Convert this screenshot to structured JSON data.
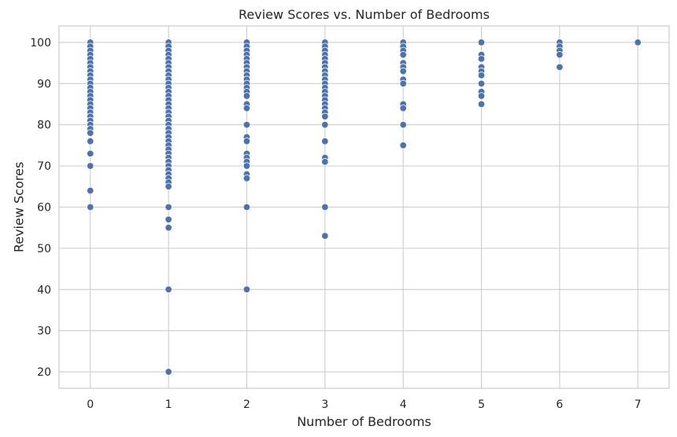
{
  "chart_data": {
    "type": "scatter",
    "title": "Review Scores vs. Number of Bedrooms",
    "xlabel": "Number of Bedrooms",
    "ylabel": "Review Scores",
    "xlim": [
      -0.4,
      7.4
    ],
    "ylim": [
      16,
      104
    ],
    "xticks": [
      0,
      1,
      2,
      3,
      4,
      5,
      6,
      7
    ],
    "yticks": [
      20,
      30,
      40,
      50,
      60,
      70,
      80,
      90,
      100
    ],
    "grid": true,
    "legend": "none",
    "point_color": "#4c72b0",
    "series": [
      {
        "points": [
          [
            0,
            100
          ],
          [
            0,
            99
          ],
          [
            0,
            98
          ],
          [
            0,
            97
          ],
          [
            0,
            96
          ],
          [
            0,
            95
          ],
          [
            0,
            94
          ],
          [
            0,
            93
          ],
          [
            0,
            92
          ],
          [
            0,
            91
          ],
          [
            0,
            90
          ],
          [
            0,
            89
          ],
          [
            0,
            88
          ],
          [
            0,
            87
          ],
          [
            0,
            86
          ],
          [
            0,
            85
          ],
          [
            0,
            84
          ],
          [
            0,
            83
          ],
          [
            0,
            82
          ],
          [
            0,
            81
          ],
          [
            0,
            80
          ],
          [
            0,
            79
          ],
          [
            0,
            78
          ],
          [
            0,
            76
          ],
          [
            0,
            73
          ],
          [
            0,
            70
          ],
          [
            0,
            64
          ],
          [
            0,
            60
          ],
          [
            1,
            100
          ],
          [
            1,
            99
          ],
          [
            1,
            98
          ],
          [
            1,
            97
          ],
          [
            1,
            96
          ],
          [
            1,
            95
          ],
          [
            1,
            94
          ],
          [
            1,
            93
          ],
          [
            1,
            92
          ],
          [
            1,
            91
          ],
          [
            1,
            90
          ],
          [
            1,
            89
          ],
          [
            1,
            88
          ],
          [
            1,
            87
          ],
          [
            1,
            86
          ],
          [
            1,
            85
          ],
          [
            1,
            84
          ],
          [
            1,
            83
          ],
          [
            1,
            82
          ],
          [
            1,
            81
          ],
          [
            1,
            80
          ],
          [
            1,
            79
          ],
          [
            1,
            78
          ],
          [
            1,
            77
          ],
          [
            1,
            76
          ],
          [
            1,
            75
          ],
          [
            1,
            74
          ],
          [
            1,
            73
          ],
          [
            1,
            72
          ],
          [
            1,
            71
          ],
          [
            1,
            70
          ],
          [
            1,
            69
          ],
          [
            1,
            68
          ],
          [
            1,
            67
          ],
          [
            1,
            66
          ],
          [
            1,
            65
          ],
          [
            1,
            60
          ],
          [
            1,
            57
          ],
          [
            1,
            55
          ],
          [
            1,
            40
          ],
          [
            1,
            20
          ],
          [
            2,
            100
          ],
          [
            2,
            99
          ],
          [
            2,
            98
          ],
          [
            2,
            97
          ],
          [
            2,
            96
          ],
          [
            2,
            95
          ],
          [
            2,
            94
          ],
          [
            2,
            93
          ],
          [
            2,
            92
          ],
          [
            2,
            91
          ],
          [
            2,
            90
          ],
          [
            2,
            89
          ],
          [
            2,
            88
          ],
          [
            2,
            87
          ],
          [
            2,
            85
          ],
          [
            2,
            84
          ],
          [
            2,
            80
          ],
          [
            2,
            77
          ],
          [
            2,
            76
          ],
          [
            2,
            73
          ],
          [
            2,
            72
          ],
          [
            2,
            71
          ],
          [
            2,
            70
          ],
          [
            2,
            68
          ],
          [
            2,
            67
          ],
          [
            2,
            60
          ],
          [
            2,
            40
          ],
          [
            3,
            100
          ],
          [
            3,
            99
          ],
          [
            3,
            98
          ],
          [
            3,
            97
          ],
          [
            3,
            96
          ],
          [
            3,
            95
          ],
          [
            3,
            94
          ],
          [
            3,
            93
          ],
          [
            3,
            92
          ],
          [
            3,
            91
          ],
          [
            3,
            90
          ],
          [
            3,
            89
          ],
          [
            3,
            88
          ],
          [
            3,
            87
          ],
          [
            3,
            86
          ],
          [
            3,
            85
          ],
          [
            3,
            84
          ],
          [
            3,
            83
          ],
          [
            3,
            82
          ],
          [
            3,
            80
          ],
          [
            3,
            76
          ],
          [
            3,
            72
          ],
          [
            3,
            71
          ],
          [
            3,
            60
          ],
          [
            3,
            53
          ],
          [
            4,
            100
          ],
          [
            4,
            99
          ],
          [
            4,
            98
          ],
          [
            4,
            97
          ],
          [
            4,
            95
          ],
          [
            4,
            94
          ],
          [
            4,
            93
          ],
          [
            4,
            91
          ],
          [
            4,
            90
          ],
          [
            4,
            85
          ],
          [
            4,
            84
          ],
          [
            4,
            80
          ],
          [
            4,
            75
          ],
          [
            5,
            100
          ],
          [
            5,
            97
          ],
          [
            5,
            96
          ],
          [
            5,
            94
          ],
          [
            5,
            93
          ],
          [
            5,
            92
          ],
          [
            5,
            90
          ],
          [
            5,
            88
          ],
          [
            5,
            87
          ],
          [
            5,
            85
          ],
          [
            6,
            100
          ],
          [
            6,
            99
          ],
          [
            6,
            98
          ],
          [
            6,
            97
          ],
          [
            6,
            94
          ],
          [
            7,
            100
          ]
        ]
      }
    ]
  }
}
